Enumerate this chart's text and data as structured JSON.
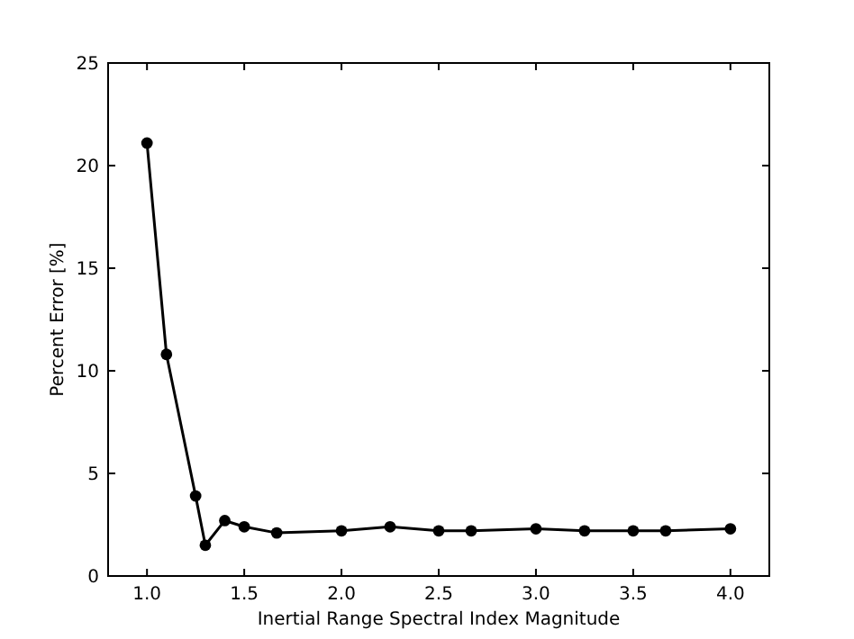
{
  "chart_data": {
    "type": "line",
    "xlabel": "Inertial Range Spectral Index Magnitude",
    "ylabel": "Percent Error [%]",
    "x": [
      1.0,
      1.1,
      1.25,
      1.3,
      1.4,
      1.5,
      1.667,
      2.0,
      2.25,
      2.5,
      2.667,
      3.0,
      3.25,
      3.5,
      3.667,
      4.0
    ],
    "series": [
      {
        "color": "#000000",
        "values": [
          21.1,
          10.8,
          3.9,
          1.5,
          2.7,
          2.4,
          2.1,
          2.2,
          2.4,
          2.2,
          2.2,
          2.3,
          2.2,
          2.2,
          2.2,
          2.3
        ]
      }
    ],
    "xlim": [
      0.8,
      4.2
    ],
    "xticks": [
      {
        "value": 1.0,
        "label": "1.0"
      },
      {
        "value": 1.5,
        "label": "1.5"
      },
      {
        "value": 2.0,
        "label": "2.0"
      },
      {
        "value": 2.5,
        "label": "2.5"
      },
      {
        "value": 3.0,
        "label": "3.0"
      },
      {
        "value": 3.5,
        "label": "3.5"
      },
      {
        "value": 4.0,
        "label": "4.0"
      }
    ],
    "ylim": [
      0,
      25
    ],
    "yticks": [
      0,
      5,
      10,
      15,
      20,
      25
    ],
    "marker": "circle",
    "line_style": "solid"
  }
}
